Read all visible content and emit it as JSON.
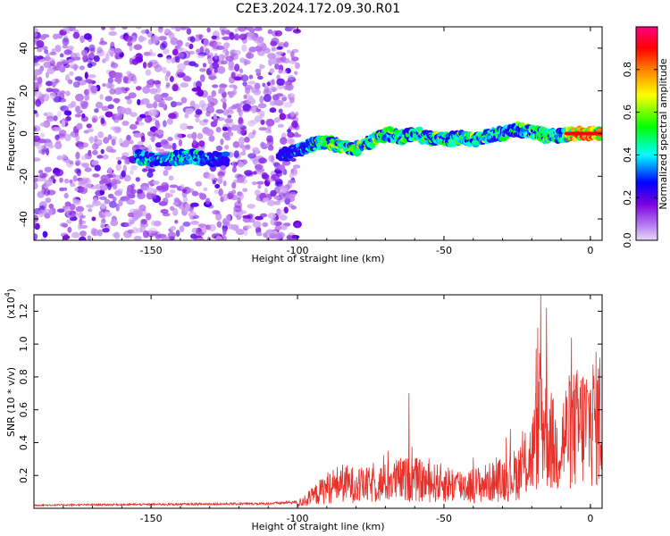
{
  "title": "C2E3.2024.172.09.30.R01",
  "chart_data": [
    {
      "type": "heatmap",
      "xlabel": "Height of straight line (km)",
      "ylabel": "Frequency (Hz)",
      "xlim": [
        -190,
        4
      ],
      "ylim": [
        -50,
        50
      ],
      "xticks": [
        -150,
        -100,
        -50,
        0
      ],
      "yticks": [
        -40,
        -20,
        0,
        20,
        40
      ],
      "colorbar": {
        "label": "Normalized spectral amplitude",
        "range": [
          0,
          1
        ],
        "ticks": [
          "0.0",
          "0.2",
          "0.4",
          "0.6",
          "0.8"
        ],
        "colors": [
          "#e8d8f8",
          "#7a00e0",
          "#0000ff",
          "#00ffff",
          "#00ff00",
          "#ffff00",
          "#ff8000",
          "#ff0000",
          "#ff0080"
        ]
      },
      "signal_track": [
        {
          "x": -155,
          "y": -11,
          "amp": 0.4
        },
        {
          "x": -150,
          "y": -12,
          "amp": 0.45
        },
        {
          "x": -145,
          "y": -12,
          "amp": 0.4
        },
        {
          "x": -140,
          "y": -11,
          "amp": 0.45
        },
        {
          "x": -135,
          "y": -11,
          "amp": 0.45
        },
        {
          "x": -130,
          "y": -12,
          "amp": 0.35
        },
        {
          "x": -125,
          "y": -12,
          "amp": 0.25
        },
        {
          "x": -105,
          "y": -10,
          "amp": 0.3
        },
        {
          "x": -100,
          "y": -8,
          "amp": 0.35
        },
        {
          "x": -95,
          "y": -5,
          "amp": 0.45
        },
        {
          "x": -90,
          "y": -4,
          "amp": 0.6
        },
        {
          "x": -85,
          "y": -6,
          "amp": 0.55
        },
        {
          "x": -80,
          "y": -7,
          "amp": 0.6
        },
        {
          "x": -75,
          "y": -4,
          "amp": 0.55
        },
        {
          "x": -70,
          "y": 0,
          "amp": 0.55
        },
        {
          "x": -65,
          "y": -2,
          "amp": 0.5
        },
        {
          "x": -60,
          "y": 0,
          "amp": 0.55
        },
        {
          "x": -55,
          "y": -2,
          "amp": 0.5
        },
        {
          "x": -50,
          "y": -3,
          "amp": 0.55
        },
        {
          "x": -45,
          "y": -2,
          "amp": 0.5
        },
        {
          "x": -40,
          "y": -3,
          "amp": 0.55
        },
        {
          "x": -35,
          "y": -1,
          "amp": 0.5
        },
        {
          "x": -30,
          "y": 0,
          "amp": 0.45
        },
        {
          "x": -25,
          "y": 2,
          "amp": 0.5
        },
        {
          "x": -20,
          "y": 1,
          "amp": 0.55
        },
        {
          "x": -15,
          "y": -1,
          "amp": 0.5
        },
        {
          "x": -10,
          "y": -1,
          "amp": 0.5
        },
        {
          "x": -5,
          "y": 0,
          "amp": 0.85
        },
        {
          "x": 0,
          "y": 0,
          "amp": 0.9
        },
        {
          "x": 4,
          "y": 0,
          "amp": 0.9
        }
      ]
    },
    {
      "type": "line",
      "xlabel": "Height of straight line (km)",
      "ylabel": "SNR (10 * v/v)",
      "yscale_label": "(x10",
      "yscale_exponent": "4",
      "yscale_close": ")",
      "xlim": [
        -190,
        4
      ],
      "ylim": [
        0,
        1.3
      ],
      "xticks": [
        -150,
        -100,
        -50,
        0
      ],
      "yticks": [
        "0.2",
        "0.4",
        "0.6",
        "0.8",
        "1.0",
        "1.2"
      ],
      "color": "#e8302a",
      "envelope": [
        {
          "x": -190,
          "y": 0.02
        },
        {
          "x": -150,
          "y": 0.025
        },
        {
          "x": -110,
          "y": 0.03
        },
        {
          "x": -100,
          "y": 0.04
        },
        {
          "x": -95,
          "y": 0.1
        },
        {
          "x": -90,
          "y": 0.18
        },
        {
          "x": -85,
          "y": 0.22
        },
        {
          "x": -80,
          "y": 0.2
        },
        {
          "x": -75,
          "y": 0.2
        },
        {
          "x": -70,
          "y": 0.22
        },
        {
          "x": -65,
          "y": 0.25
        },
        {
          "x": -60,
          "y": 0.25
        },
        {
          "x": -55,
          "y": 0.22
        },
        {
          "x": -50,
          "y": 0.22
        },
        {
          "x": -45,
          "y": 0.2
        },
        {
          "x": -40,
          "y": 0.2
        },
        {
          "x": -35,
          "y": 0.22
        },
        {
          "x": -30,
          "y": 0.25
        },
        {
          "x": -25,
          "y": 0.3
        },
        {
          "x": -20,
          "y": 0.45
        },
        {
          "x": -17,
          "y": 0.8
        },
        {
          "x": -15,
          "y": 0.7
        },
        {
          "x": -12,
          "y": 0.5
        },
        {
          "x": -8,
          "y": 0.65
        },
        {
          "x": -4,
          "y": 0.7
        },
        {
          "x": 0,
          "y": 0.75
        },
        {
          "x": 4,
          "y": 0.8
        }
      ],
      "peaks": [
        {
          "x": -62,
          "y": 0.7
        },
        {
          "x": -17,
          "y": 1.3
        },
        {
          "x": -15,
          "y": 1.22
        },
        {
          "x": -18,
          "y": 1.1
        },
        {
          "x": 4,
          "y": 1.05
        }
      ]
    }
  ]
}
